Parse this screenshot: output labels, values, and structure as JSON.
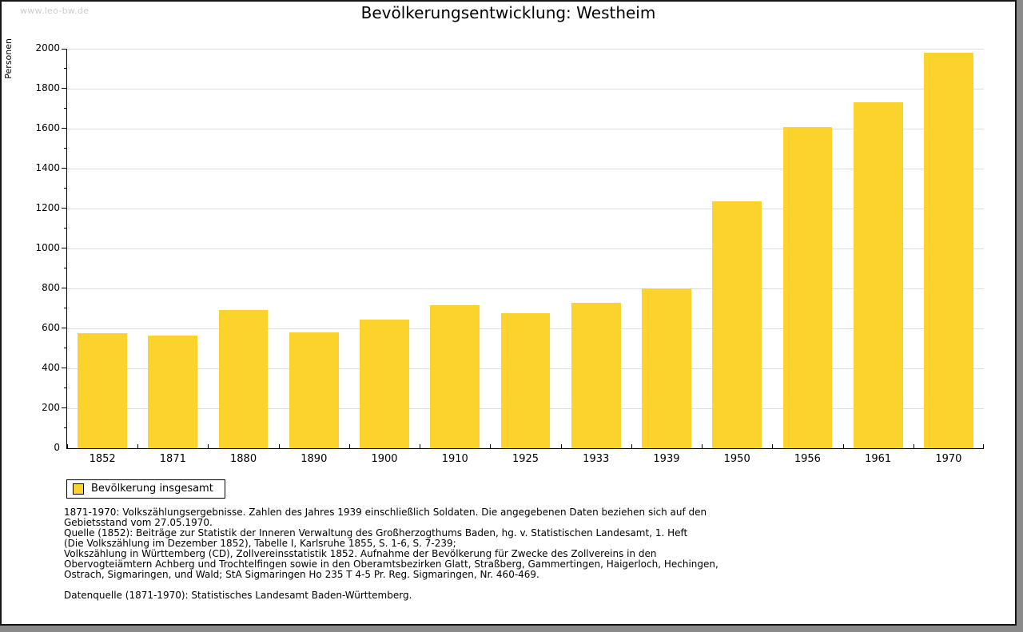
{
  "page": {
    "watermark": "www.leo-bw.de"
  },
  "chart_data": {
    "type": "bar",
    "title": "Bevölkerungsentwicklung: Westheim",
    "xlabel": "",
    "ylabel": "Personen",
    "categories": [
      "1852",
      "1871",
      "1880",
      "1890",
      "1900",
      "1910",
      "1925",
      "1933",
      "1939",
      "1950",
      "1956",
      "1961",
      "1970"
    ],
    "values": [
      576,
      563,
      691,
      580,
      646,
      718,
      678,
      728,
      800,
      1236,
      1610,
      1731,
      1982
    ],
    "ylim": [
      0,
      2000
    ],
    "ytick_step": 200,
    "y_minor_step": 100,
    "grid": "horizontal-major",
    "bar_color": "#fcd32d",
    "gridline_color": "#dddddd",
    "axis_color": "#000000",
    "legend": {
      "position": "bottom-left",
      "entries": [
        {
          "label": "Bevölkerung insgesamt",
          "color": "#fcd32d"
        }
      ]
    }
  },
  "footer": {
    "lines": [
      "1871-1970: Volkszählungsergebnisse. Zahlen des Jahres 1939 einschließlich Soldaten. Die angegebenen Daten beziehen sich auf den",
      "Gebietsstand vom 27.05.1970.",
      "Quelle (1852): Beiträge zur Statistik der Inneren Verwaltung des Großherzogthums Baden, hg. v. Statistischen Landesamt, 1. Heft",
      "(Die Volkszählung im Dezember 1852), Tabelle I, Karlsruhe 1855, S. 1-6, S. 7-239;",
      "Volkszählung in Württemberg (CD), Zollvereinsstatistik 1852. Aufnahme der Bevölkerung für Zwecke des Zollvereins in den",
      "Obervogteiämtern Achberg und Trochtelfingen sowie in den Oberamtsbezirken Glatt, Straßberg, Gammertingen, Haigerloch, Hechingen,",
      "Ostrach, Sigmaringen, und Wald; StA Sigmaringen Ho 235 T 4-5 Pr. Reg. Sigmaringen, Nr. 460-469.",
      "",
      "Datenquelle (1871-1970): Statistisches Landesamt Baden-Württemberg."
    ]
  },
  "colors": {
    "frame_border": "#151515",
    "frame_shadow": "#8a8a8a",
    "watermark": "#cccccc"
  }
}
